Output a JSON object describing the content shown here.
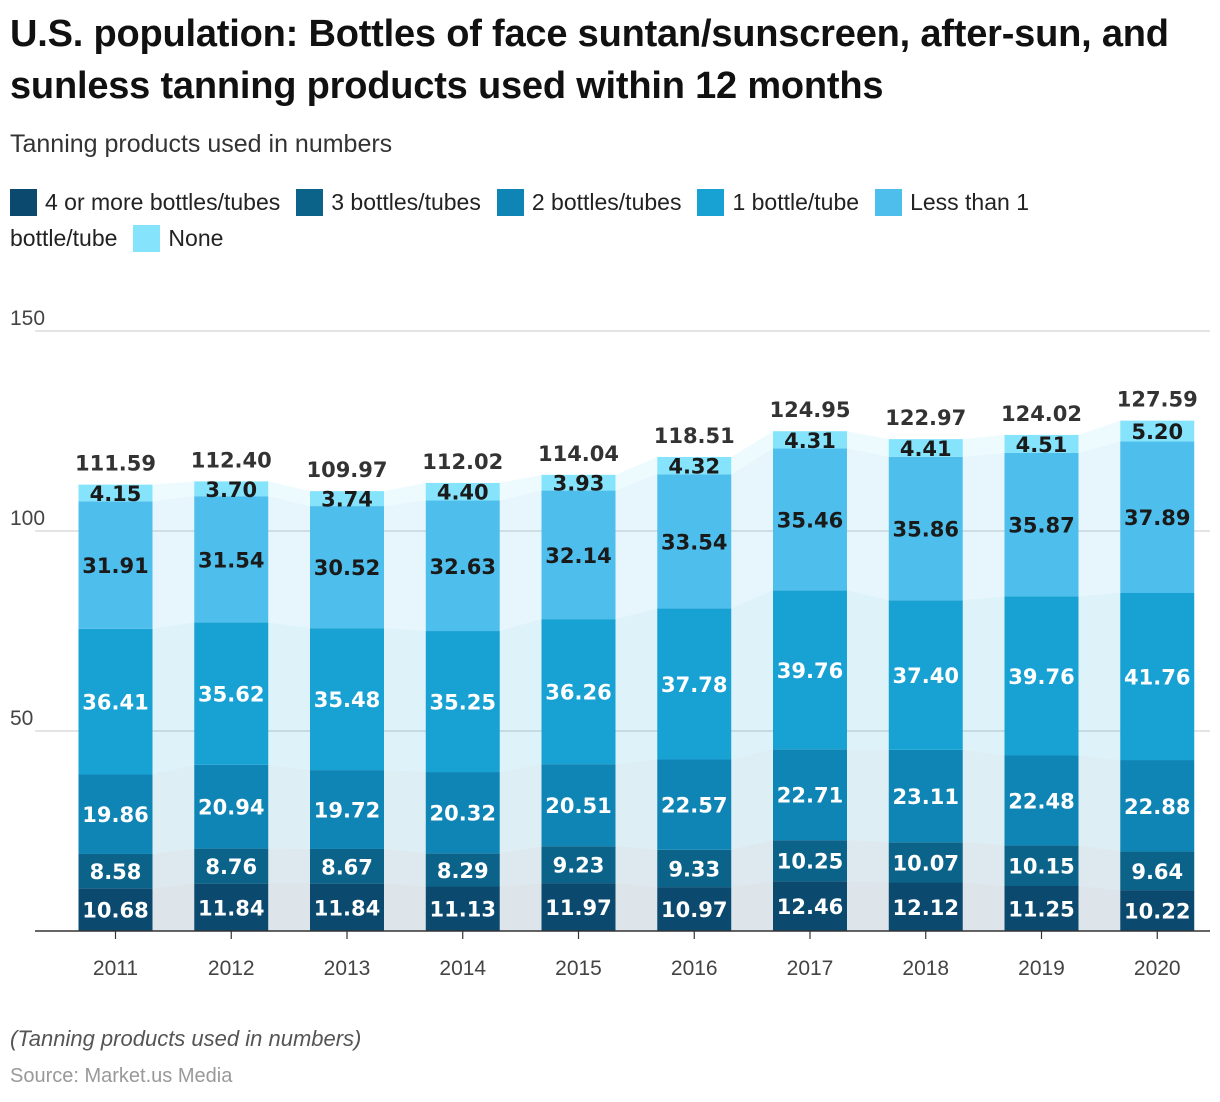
{
  "title": "U.S. population: Bottles of face suntan/sunscreen, after-sun, and sunless tanning products used within 12 months",
  "subtitle": "Tanning products used in numbers",
  "note": "(Tanning products used in numbers)",
  "source": "Source: Market.us Media",
  "chart_data": {
    "type": "bar",
    "stacked": true,
    "categories": [
      "2011",
      "2012",
      "2013",
      "2014",
      "2015",
      "2016",
      "2017",
      "2018",
      "2019",
      "2020"
    ],
    "series": [
      {
        "name": "4 or more bottles/tubes",
        "color": "#0b4a6e",
        "values": [
          10.68,
          11.84,
          11.84,
          11.13,
          11.97,
          10.97,
          12.46,
          12.12,
          11.25,
          10.22
        ]
      },
      {
        "name": "3 bottles/tubes",
        "color": "#0c6389",
        "values": [
          8.58,
          8.76,
          8.67,
          8.29,
          9.23,
          9.33,
          10.25,
          10.07,
          10.15,
          9.64
        ]
      },
      {
        "name": "2 bottles/tubes",
        "color": "#0f85b5",
        "values": [
          19.86,
          20.94,
          19.72,
          20.32,
          20.51,
          22.57,
          22.71,
          23.11,
          22.48,
          22.88
        ]
      },
      {
        "name": "1 bottle/tube",
        "color": "#18a1d3",
        "values": [
          36.41,
          35.62,
          35.48,
          35.25,
          36.26,
          37.78,
          39.76,
          37.4,
          39.76,
          41.76
        ]
      },
      {
        "name": "Less than 1 bottle/tube",
        "color": "#4ebfec",
        "values": [
          31.91,
          31.54,
          30.52,
          32.63,
          32.14,
          33.54,
          35.46,
          35.86,
          35.87,
          37.89
        ]
      },
      {
        "name": "None",
        "color": "#85e3fb",
        "values": [
          4.15,
          3.7,
          3.74,
          4.4,
          3.93,
          4.32,
          4.31,
          4.41,
          4.51,
          5.2
        ]
      }
    ],
    "totals": [
      111.59,
      112.4,
      109.97,
      112.02,
      114.04,
      118.51,
      124.95,
      122.97,
      124.02,
      127.59
    ],
    "y_ticks": [
      50,
      100,
      150
    ],
    "ylim": [
      0,
      150
    ],
    "grid": true,
    "legend_position": "top"
  }
}
